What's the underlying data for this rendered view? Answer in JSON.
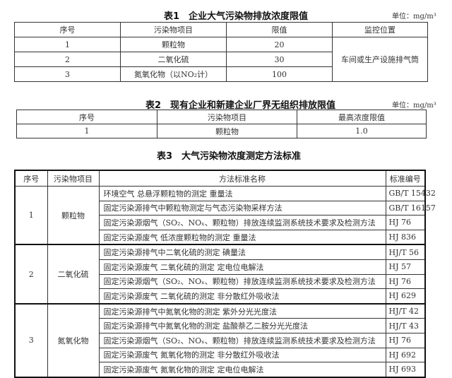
{
  "table1": {
    "title": "表1　企业大气污染物排放浓度限值",
    "unit": "单位：mg/m³",
    "headers": [
      "序号",
      "污染物项目",
      "限值",
      "监控位置"
    ],
    "rows": [
      {
        "no": "1",
        "pollutant": "颗粒物",
        "limit": "20"
      },
      {
        "no": "2",
        "pollutant": "二氧化硫",
        "limit": "30"
      },
      {
        "no": "3",
        "pollutant": "氮氧化物（以NO₂计）",
        "limit": "100"
      }
    ],
    "location": "车间或生产设施排气筒"
  },
  "table2": {
    "title": "表2　现有企业和新建企业厂界无组织排放限值",
    "unit": "单位：mg/m³",
    "headers": [
      "序号",
      "污染物项目",
      "最高浓度限值"
    ],
    "rows": [
      {
        "no": "1",
        "pollutant": "颗粒物",
        "limit": "1.0"
      }
    ]
  },
  "table3": {
    "title": "表3　大气污染物浓度测定方法标准",
    "headers": [
      "序号",
      "污染物项目",
      "方法标准名称",
      "标准编号"
    ],
    "groups": [
      {
        "no": "1",
        "pollutant": "颗粒物",
        "methods": [
          {
            "name": "环境空气  总悬浮颗粒物的测定  重量法",
            "code": "GB/T 15432"
          },
          {
            "name": "固定污染源排气中颗粒物测定与气态污染物采样方法",
            "code": "GB/T 16157"
          },
          {
            "name": "固定污染源烟气（SO₂、NOₓ、颗粒物）排放连续监测系统技术要求及检测方法",
            "code": "HJ 76"
          },
          {
            "name": "固定污染源废气  低浓度颗粒物的测定  重量法",
            "code": "HJ 836"
          }
        ]
      },
      {
        "no": "2",
        "pollutant": "二氧化硫",
        "methods": [
          {
            "name": "固定污染源排气中二氧化硫的测定  碘量法",
            "code": "HJ/T 56"
          },
          {
            "name": "固定污染源废气  二氧化硫的测定  定电位电解法",
            "code": "HJ 57"
          },
          {
            "name": "固定污染源烟气（SO₂、NOₓ、颗粒物）排放连续监测系统技术要求及检测方法",
            "code": "HJ 76"
          },
          {
            "name": "固定污染源废气  二氧化硫的测定  非分散红外吸收法",
            "code": "HJ 629"
          }
        ]
      },
      {
        "no": "3",
        "pollutant": "氮氧化物",
        "methods": [
          {
            "name": "固定污染源排气中氮氧化物的测定  紫外分光光度法",
            "code": "HJ/T 42"
          },
          {
            "name": "固定污染源排气中氮氧化物的测定  盐酸萘乙二胺分光光度法",
            "code": "HJ/T 43"
          },
          {
            "name": "固定污染源烟气（SO₂、NOₓ、颗粒物）排放连续监测系统技术要求及检测方法",
            "code": "HJ 76"
          },
          {
            "name": "固定污染源废气  氮氧化物的测定  非分散红外吸收法",
            "code": "HJ 692"
          },
          {
            "name": "固定污染源废气  氮氧化物的测定  定电位电解法",
            "code": "HJ 693"
          }
        ]
      }
    ]
  }
}
